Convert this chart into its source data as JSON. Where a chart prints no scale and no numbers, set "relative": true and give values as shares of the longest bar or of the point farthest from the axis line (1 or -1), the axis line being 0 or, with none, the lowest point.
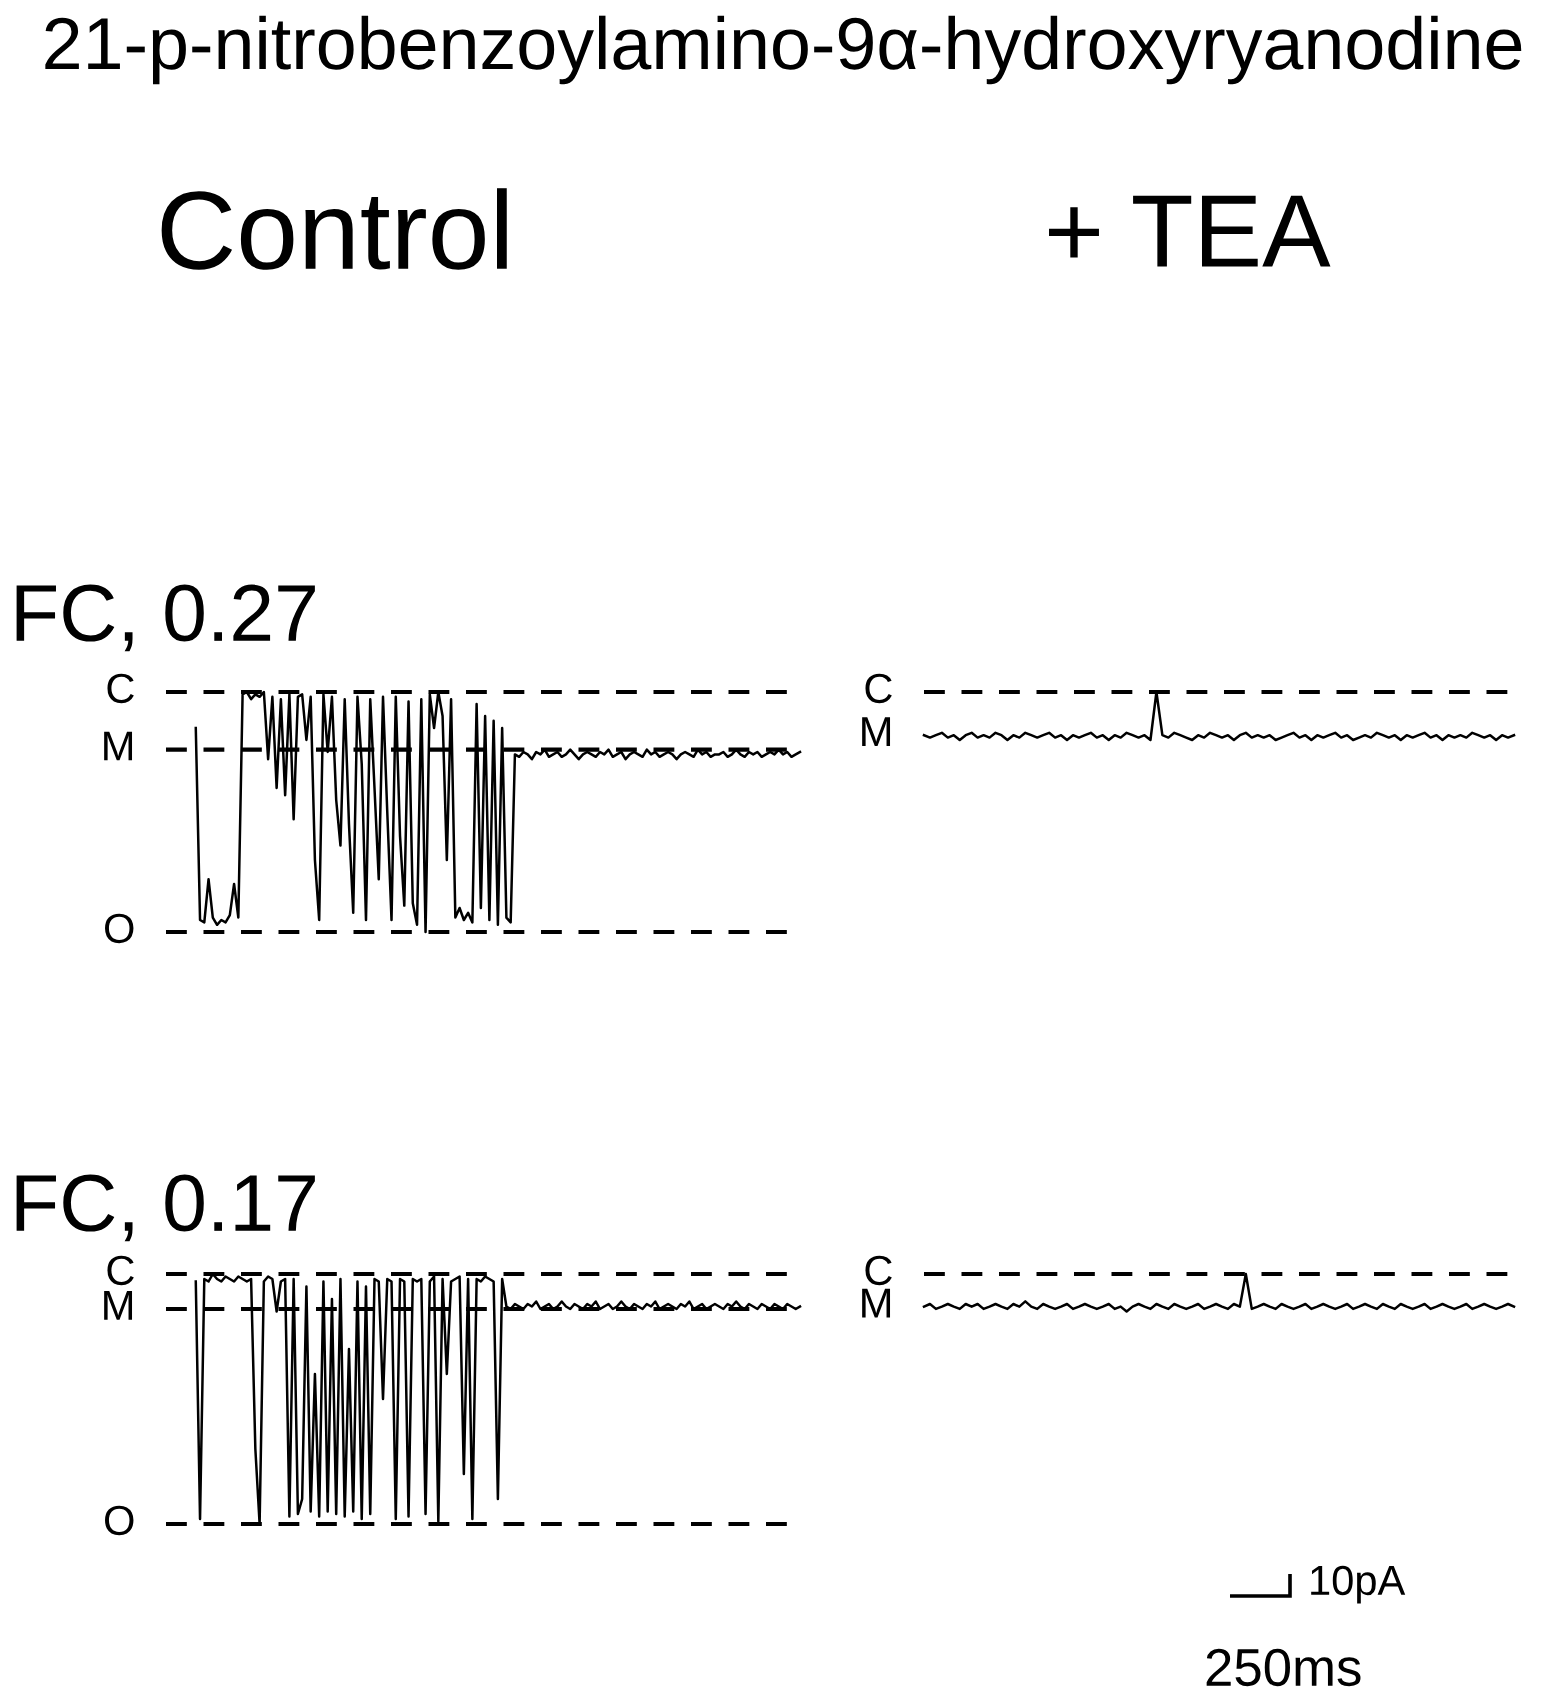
{
  "chart_data": [
    {
      "type": "line",
      "title": "21-p-nitrobenzoylamino-9α-hydroxyryanodine",
      "subtitle": "Control",
      "annotations": [
        "FC, 0.27"
      ],
      "relative": true,
      "categories": [
        null,
        null,
        null,
        null,
        null,
        null,
        null,
        null,
        null,
        null,
        null,
        null,
        null,
        null,
        null,
        null,
        null,
        null,
        null,
        null,
        null,
        null,
        null,
        null,
        null,
        null,
        null,
        null,
        null,
        null,
        null,
        null,
        null,
        null,
        null,
        null,
        null,
        null,
        null,
        null,
        null,
        null,
        null,
        null,
        null,
        null,
        null,
        null,
        null,
        null,
        null,
        null,
        null,
        null,
        null,
        null,
        null,
        null,
        null,
        null,
        null,
        null,
        null,
        null,
        null,
        null,
        null,
        null,
        null,
        null,
        null,
        null,
        null,
        null,
        null,
        null,
        null,
        null,
        null,
        null,
        null,
        null,
        null,
        null,
        null,
        null,
        null,
        null,
        null,
        null,
        null,
        null,
        null,
        null,
        null,
        null,
        null,
        null,
        null,
        null,
        null,
        null,
        null,
        null,
        null,
        null,
        null,
        null,
        null,
        null,
        null,
        null,
        null,
        null,
        null,
        null,
        null,
        null,
        null,
        null,
        null,
        null,
        null,
        null,
        null,
        null,
        null,
        null,
        null,
        null,
        null,
        null,
        null,
        null,
        null,
        null,
        null,
        null,
        null,
        null,
        null,
        null,
        null,
        null,
        null,
        null,
        null,
        null,
        null,
        null
      ],
      "series": [
        {
          "color": "#000000",
          "values": [
            null,
            null,
            null,
            null,
            null,
            null,
            null,
            0.85,
            0.05,
            0.04,
            0.22,
            0.06,
            0.03,
            0.05,
            0.04,
            0.07,
            0.2,
            0.06,
            0.99,
            1.0,
            0.97,
            0.99,
            0.98,
            1.0,
            0.72,
            0.98,
            0.6,
            0.97,
            0.57,
            0.99,
            0.47,
            0.98,
            0.99,
            0.8,
            0.98,
            0.3,
            0.05,
            0.99,
            0.75,
            0.98,
            0.55,
            0.36,
            0.97,
            0.45,
            0.08,
            0.98,
            0.7,
            0.05,
            0.97,
            0.6,
            0.22,
            0.98,
            0.5,
            0.05,
            0.98,
            0.4,
            0.11,
            0.96,
            0.12,
            0.03,
            0.97,
            0.0,
            0.99,
            0.85,
            1.0,
            0.9,
            0.3,
            0.97,
            0.06,
            0.1,
            0.05,
            0.08,
            0.04,
            0.95,
            0.1,
            0.9,
            0.05,
            0.88,
            0.03,
            0.85,
            0.06,
            0.04,
            0.74,
            0.73,
            0.75,
            0.74,
            0.72,
            0.75,
            0.74,
            0.76,
            0.73,
            0.74,
            0.75,
            0.73,
            0.74,
            0.76,
            0.74,
            0.72,
            0.74,
            0.75,
            0.74,
            0.73,
            0.75,
            0.74,
            0.76,
            0.73,
            0.74,
            0.75,
            0.72,
            0.74,
            0.75,
            0.74,
            0.73,
            0.76,
            0.74,
            0.75,
            0.73,
            0.74,
            0.75,
            0.74,
            0.72,
            0.74,
            0.75,
            0.74,
            0.73,
            0.76,
            0.74,
            0.75,
            0.73,
            0.74,
            0.74,
            0.75,
            0.73,
            0.74,
            0.76,
            0.74,
            0.73,
            0.75,
            0.74,
            0.75,
            0.73,
            0.74,
            0.75,
            0.74,
            0.76,
            0.74,
            0.75,
            0.73,
            0.74,
            0.75
          ]
        }
      ],
      "ref_lines": [
        {
          "axis": "y",
          "value": 1,
          "label": "C",
          "line_style": "dashed",
          "color": "#000000"
        },
        {
          "axis": "y",
          "value": 0.76,
          "label": "M",
          "line_style": "dashed",
          "color": "#000000"
        },
        {
          "axis": "y",
          "value": 0,
          "label": "O",
          "line_style": "dashed",
          "color": "#000000"
        }
      ]
    },
    {
      "type": "line",
      "subtitle": "+ TEA",
      "annotations": [
        "M"
      ],
      "relative": true,
      "categories": [
        null,
        null,
        null,
        null,
        null,
        null,
        null,
        null,
        null,
        null,
        null,
        null,
        null,
        null,
        null,
        null,
        null,
        null,
        null,
        null,
        null,
        null,
        null,
        null,
        null,
        null,
        null,
        null,
        null,
        null,
        null,
        null,
        null,
        null,
        null,
        null,
        null,
        null,
        null,
        null,
        null,
        null,
        null,
        null,
        null,
        null,
        null,
        null,
        null,
        null,
        null,
        null,
        null,
        null,
        null,
        null,
        null,
        null,
        null,
        null,
        null,
        null,
        null,
        null,
        null,
        null,
        null,
        null,
        null,
        null,
        null,
        null,
        null,
        null,
        null,
        null,
        null,
        null,
        null,
        null,
        null,
        null,
        null,
        null,
        null,
        null,
        null,
        null,
        null,
        null,
        null,
        null,
        null,
        null,
        null,
        null,
        null,
        null,
        null,
        null
      ],
      "series": [
        {
          "color": "#000000",
          "values": [
            0.1,
            0.05,
            0.1,
            0.15,
            0.05,
            0.1,
            0.0,
            0.1,
            0.15,
            0.05,
            0.1,
            0.05,
            0.15,
            0.1,
            0.0,
            0.1,
            0.05,
            0.15,
            0.1,
            0.05,
            0.1,
            0.15,
            0.05,
            0.1,
            0.0,
            0.1,
            0.05,
            0.1,
            0.15,
            0.05,
            0.1,
            0.0,
            0.1,
            0.05,
            0.15,
            0.1,
            0.05,
            0.1,
            0.0,
            1.0,
            0.1,
            0.05,
            0.15,
            0.1,
            0.05,
            0.0,
            0.1,
            0.05,
            0.15,
            0.1,
            0.05,
            0.1,
            0.0,
            0.1,
            0.15,
            0.05,
            0.1,
            0.05,
            0.1,
            0.0,
            0.05,
            0.1,
            0.15,
            0.05,
            0.1,
            0.0,
            0.1,
            0.05,
            0.1,
            0.15,
            0.05,
            0.1,
            0.0,
            0.05,
            0.1,
            0.05,
            0.15,
            0.1,
            0.05,
            0.1,
            0.0,
            0.1,
            0.05,
            0.1,
            0.15,
            0.05,
            0.1,
            0.0,
            0.1,
            0.05,
            0.1,
            0.05,
            0.15,
            0.1,
            0.05,
            0.1,
            0.0,
            0.1,
            0.05,
            0.1
          ]
        }
      ],
      "ref_lines": [
        {
          "axis": "y",
          "value": 1,
          "label": "C",
          "line_style": "dashed",
          "color": "#000000"
        }
      ]
    },
    {
      "type": "line",
      "annotations": [
        "FC, 0.17"
      ],
      "relative": true,
      "categories": [
        null,
        null,
        null,
        null,
        null,
        null,
        null,
        null,
        null,
        null,
        null,
        null,
        null,
        null,
        null,
        null,
        null,
        null,
        null,
        null,
        null,
        null,
        null,
        null,
        null,
        null,
        null,
        null,
        null,
        null,
        null,
        null,
        null,
        null,
        null,
        null,
        null,
        null,
        null,
        null,
        null,
        null,
        null,
        null,
        null,
        null,
        null,
        null,
        null,
        null,
        null,
        null,
        null,
        null,
        null,
        null,
        null,
        null,
        null,
        null,
        null,
        null,
        null,
        null,
        null,
        null,
        null,
        null,
        null,
        null,
        null,
        null,
        null,
        null,
        null,
        null,
        null,
        null,
        null,
        null,
        null,
        null,
        null,
        null,
        null,
        null,
        null,
        null,
        null,
        null,
        null,
        null,
        null,
        null,
        null,
        null,
        null,
        null,
        null,
        null,
        null,
        null,
        null,
        null,
        null,
        null,
        null,
        null,
        null,
        null,
        null,
        null,
        null,
        null,
        null,
        null,
        null,
        null,
        null,
        null,
        null,
        null,
        null,
        null,
        null,
        null,
        null,
        null,
        null,
        null,
        null,
        null,
        null,
        null,
        null,
        null,
        null,
        null,
        null,
        null,
        null,
        null,
        null,
        null,
        null,
        null,
        null,
        null,
        null,
        null
      ],
      "series": [
        {
          "color": "#000000",
          "values": [
            null,
            null,
            null,
            null,
            null,
            null,
            null,
            0.97,
            0.02,
            0.98,
            0.97,
            1.0,
            0.98,
            0.97,
            0.99,
            0.98,
            0.97,
            0.99,
            0.98,
            0.97,
            0.98,
            0.3,
            0.0,
            0.97,
            0.99,
            0.98,
            0.85,
            0.97,
            0.98,
            0.03,
            0.98,
            0.04,
            0.1,
            0.95,
            0.05,
            0.6,
            0.03,
            0.97,
            0.05,
            0.9,
            0.04,
            0.98,
            0.03,
            0.7,
            0.05,
            0.97,
            0.02,
            0.95,
            0.04,
            0.98,
            0.97,
            0.5,
            0.98,
            0.97,
            0.02,
            0.98,
            0.97,
            0.03,
            0.98,
            0.97,
            0.98,
            0.04,
            0.97,
            0.99,
            0.01,
            0.98,
            0.6,
            0.97,
            0.98,
            0.99,
            0.2,
            0.98,
            0.02,
            0.98,
            0.97,
            0.99,
            0.98,
            0.97,
            0.1,
            0.98,
            0.87,
            0.86,
            0.88,
            0.87,
            0.86,
            0.88,
            0.87,
            0.89,
            0.86,
            0.87,
            0.88,
            0.86,
            0.87,
            0.89,
            0.87,
            0.86,
            0.88,
            0.87,
            0.86,
            0.88,
            0.87,
            0.89,
            0.86,
            0.87,
            0.88,
            0.86,
            0.87,
            0.89,
            0.87,
            0.86,
            0.88,
            0.87,
            0.86,
            0.88,
            0.87,
            0.89,
            0.86,
            0.87,
            0.88,
            0.87,
            0.86,
            0.88,
            0.87,
            0.89,
            0.86,
            0.87,
            0.88,
            0.86,
            0.87,
            0.88,
            0.87,
            0.86,
            0.88,
            0.87,
            0.89,
            0.87,
            0.86,
            0.88,
            0.87,
            0.86,
            0.88,
            0.87,
            0.86,
            0.88,
            0.87,
            0.86,
            0.88,
            0.87,
            0.86,
            0.87
          ]
        }
      ],
      "ref_lines": [
        {
          "axis": "y",
          "value": 1,
          "label": "C",
          "line_style": "dashed",
          "color": "#000000"
        },
        {
          "axis": "y",
          "value": 0.86,
          "label": "M",
          "line_style": "dashed",
          "color": "#000000"
        },
        {
          "axis": "y",
          "value": 0,
          "label": "O",
          "line_style": "dashed",
          "color": "#000000"
        }
      ]
    },
    {
      "type": "line",
      "annotations": [
        "M",
        "10pA",
        "250ms"
      ],
      "relative": true,
      "categories": [
        null,
        null,
        null,
        null,
        null,
        null,
        null,
        null,
        null,
        null,
        null,
        null,
        null,
        null,
        null,
        null,
        null,
        null,
        null,
        null,
        null,
        null,
        null,
        null,
        null,
        null,
        null,
        null,
        null,
        null,
        null,
        null,
        null,
        null,
        null,
        null,
        null,
        null,
        null,
        null,
        null,
        null,
        null,
        null,
        null,
        null,
        null,
        null,
        null,
        null,
        null,
        null,
        null,
        null,
        null,
        null,
        null,
        null,
        null,
        null,
        null,
        null,
        null,
        null,
        null,
        null,
        null,
        null,
        null,
        null,
        null,
        null,
        null,
        null,
        null,
        null,
        null,
        null,
        null,
        null,
        null,
        null,
        null,
        null,
        null,
        null,
        null,
        null,
        null,
        null,
        null,
        null,
        null,
        null,
        null,
        null,
        null,
        null,
        null,
        null
      ],
      "series": [
        {
          "color": "#000000",
          "values": [
            0.13,
            0.2,
            0.07,
            0.13,
            0.2,
            0.13,
            0.07,
            0.2,
            0.13,
            0.2,
            0.07,
            0.13,
            0.2,
            0.13,
            0.07,
            0.2,
            0.13,
            0.27,
            0.13,
            0.07,
            0.2,
            0.13,
            0.07,
            0.13,
            0.2,
            0.07,
            0.13,
            0.2,
            0.13,
            0.07,
            0.13,
            0.2,
            0.07,
            0.13,
            0.0,
            0.13,
            0.2,
            0.13,
            0.07,
            0.2,
            0.13,
            0.07,
            0.2,
            0.13,
            0.07,
            0.13,
            0.2,
            0.07,
            0.13,
            0.2,
            0.13,
            0.07,
            0.2,
            0.13,
            1.0,
            0.07,
            0.13,
            0.2,
            0.13,
            0.07,
            0.2,
            0.13,
            0.07,
            0.13,
            0.2,
            0.07,
            0.13,
            0.2,
            0.13,
            0.07,
            0.13,
            0.2,
            0.07,
            0.13,
            0.2,
            0.13,
            0.07,
            0.2,
            0.13,
            0.07,
            0.2,
            0.13,
            0.07,
            0.13,
            0.2,
            0.07,
            0.13,
            0.2,
            0.13,
            0.07,
            0.13,
            0.2,
            0.07,
            0.13,
            0.2,
            0.13,
            0.07,
            0.13,
            0.2,
            0.13
          ]
        }
      ],
      "ref_lines": [
        {
          "axis": "y",
          "value": 1,
          "label": "C",
          "line_style": "dashed",
          "color": "#000000"
        }
      ]
    }
  ]
}
